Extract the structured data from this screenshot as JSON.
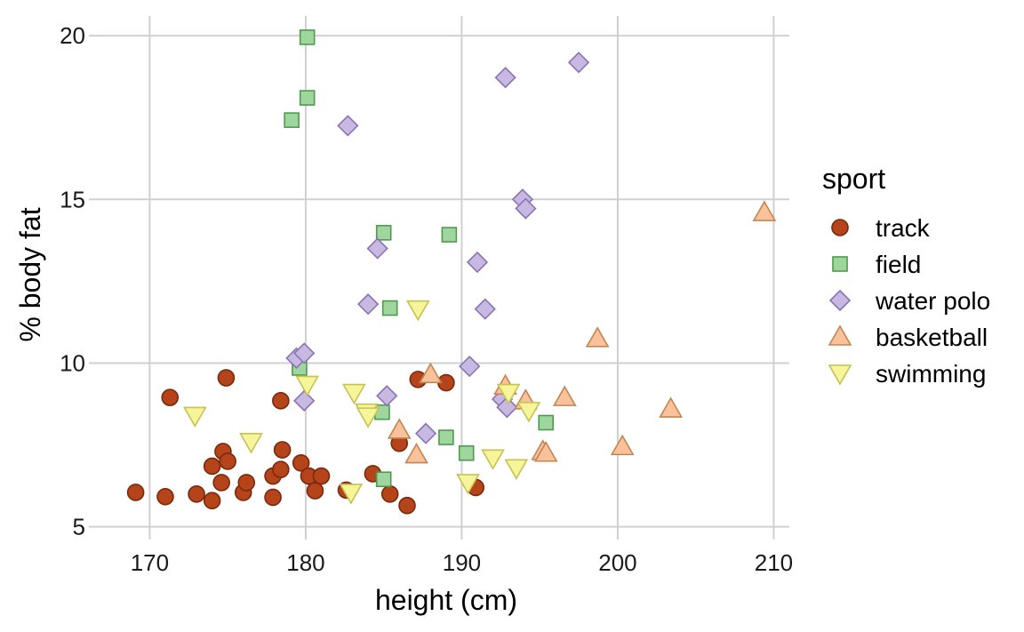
{
  "chart_data": {
    "type": "scatter",
    "xlabel": "height (cm)",
    "ylabel": "% body fat",
    "xlim": [
      166.5,
      211
    ],
    "ylim": [
      4.8,
      20.6
    ],
    "xticks": [
      170,
      180,
      190,
      200,
      210
    ],
    "yticks": [
      5,
      10,
      15,
      20
    ],
    "x_tick_labels": [
      "170",
      "180",
      "190",
      "200",
      "210"
    ],
    "y_tick_labels": [
      "5",
      "10",
      "15",
      "20"
    ],
    "grid": true,
    "legend": {
      "title": "sport",
      "position": "right"
    },
    "series": [
      {
        "name": "track",
        "marker": "circle",
        "fill": "#b5441a",
        "stroke": "#7a2a0c",
        "points": [
          [
            169.1,
            6.05
          ],
          [
            171.0,
            5.92
          ],
          [
            171.3,
            8.95
          ],
          [
            173.0,
            6.0
          ],
          [
            174.0,
            5.8
          ],
          [
            174.0,
            6.85
          ],
          [
            174.6,
            6.35
          ],
          [
            174.7,
            7.3
          ],
          [
            175.0,
            7.0
          ],
          [
            174.9,
            9.55
          ],
          [
            176.0,
            6.05
          ],
          [
            176.2,
            6.35
          ],
          [
            177.9,
            5.9
          ],
          [
            177.9,
            6.55
          ],
          [
            178.4,
            6.75
          ],
          [
            178.5,
            7.35
          ],
          [
            178.4,
            8.85
          ],
          [
            179.7,
            6.95
          ],
          [
            180.2,
            6.55
          ],
          [
            180.6,
            6.1
          ],
          [
            181.0,
            6.55
          ],
          [
            182.6,
            6.12
          ],
          [
            184.3,
            6.62
          ],
          [
            185.4,
            6.0
          ],
          [
            186.0,
            7.55
          ],
          [
            186.5,
            5.65
          ],
          [
            187.2,
            9.5
          ],
          [
            189.0,
            9.4
          ],
          [
            190.9,
            6.2
          ]
        ]
      },
      {
        "name": "field",
        "marker": "square",
        "fill": "#9ed69e",
        "stroke": "#4f9a4f",
        "points": [
          [
            179.1,
            17.42
          ],
          [
            179.6,
            9.85
          ],
          [
            180.1,
            19.95
          ],
          [
            180.1,
            18.1
          ],
          [
            184.9,
            8.5
          ],
          [
            185.0,
            6.45
          ],
          [
            185.0,
            13.98
          ],
          [
            185.4,
            11.68
          ],
          [
            189.0,
            7.73
          ],
          [
            189.2,
            13.92
          ],
          [
            190.3,
            7.25
          ],
          [
            195.4,
            8.18
          ]
        ]
      },
      {
        "name": "water polo",
        "marker": "diamond",
        "fill": "#c8b9e2",
        "stroke": "#8b73b3",
        "points": [
          [
            179.4,
            10.15
          ],
          [
            179.9,
            10.3
          ],
          [
            179.9,
            8.85
          ],
          [
            182.7,
            17.25
          ],
          [
            184.0,
            11.8
          ],
          [
            184.6,
            13.5
          ],
          [
            185.2,
            9.0
          ],
          [
            187.7,
            7.85
          ],
          [
            190.5,
            9.9
          ],
          [
            191.0,
            13.08
          ],
          [
            191.5,
            11.65
          ],
          [
            192.6,
            8.9
          ],
          [
            192.8,
            18.72
          ],
          [
            192.9,
            8.65
          ],
          [
            193.9,
            15.0
          ],
          [
            194.1,
            14.72
          ],
          [
            197.5,
            19.18
          ]
        ]
      },
      {
        "name": "basketball",
        "marker": "triangle-up",
        "fill": "#f9c29a",
        "stroke": "#c48551",
        "points": [
          [
            186.0,
            7.95
          ],
          [
            187.1,
            7.2
          ],
          [
            188.0,
            9.65
          ],
          [
            192.8,
            9.3
          ],
          [
            194.1,
            8.85
          ],
          [
            195.2,
            7.3
          ],
          [
            195.4,
            7.25
          ],
          [
            196.6,
            8.95
          ],
          [
            198.7,
            10.75
          ],
          [
            200.3,
            7.45
          ],
          [
            203.4,
            8.6
          ],
          [
            209.4,
            14.6
          ]
        ]
      },
      {
        "name": "swimming",
        "marker": "triangle-down",
        "fill": "#f6f59a",
        "stroke": "#c6c254",
        "points": [
          [
            172.9,
            8.4
          ],
          [
            176.5,
            7.6
          ],
          [
            180.1,
            9.35
          ],
          [
            182.9,
            6.05
          ],
          [
            183.1,
            9.1
          ],
          [
            183.9,
            8.5
          ],
          [
            184.0,
            8.38
          ],
          [
            187.2,
            11.65
          ],
          [
            190.4,
            6.35
          ],
          [
            192.0,
            7.1
          ],
          [
            193.0,
            9.1
          ],
          [
            193.5,
            6.8
          ],
          [
            194.3,
            8.55
          ]
        ]
      }
    ]
  }
}
